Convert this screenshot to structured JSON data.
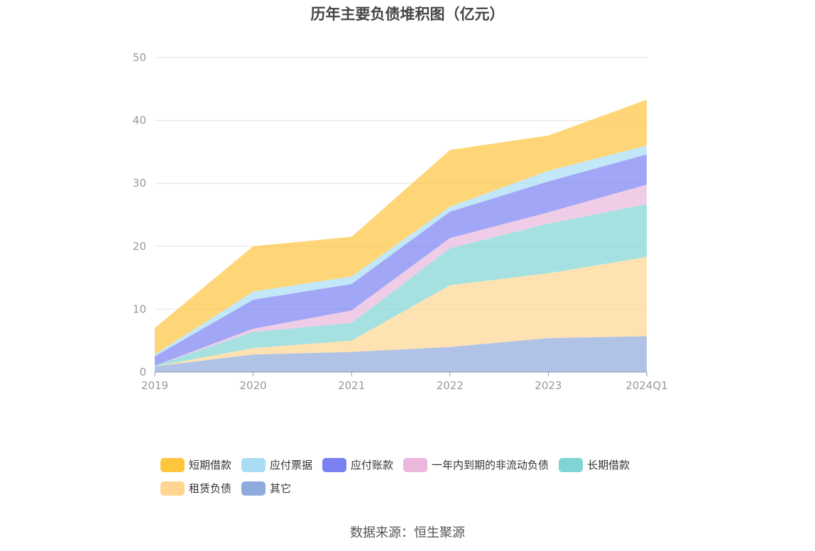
{
  "chart_data": {
    "type": "area",
    "stacked": true,
    "title": "历年主要负债堆积图（亿元）",
    "categories": [
      "2019",
      "2020",
      "2021",
      "2022",
      "2023",
      "2024Q1"
    ],
    "ylim": [
      0,
      50
    ],
    "yticks": [
      "0",
      "10",
      "20",
      "30",
      "40",
      "50"
    ],
    "grid": true,
    "legend_position": "bottom",
    "series": [
      {
        "name": "其它",
        "color": "#8faadc",
        "values": [
          0.9,
          2.8,
          3.2,
          4.0,
          5.4,
          5.7
        ]
      },
      {
        "name": "租赁负债",
        "color": "#ffd591",
        "values": [
          0.0,
          1.0,
          1.8,
          9.8,
          10.3,
          12.6
        ]
      },
      {
        "name": "长期借款",
        "color": "#80d4d6",
        "values": [
          0.1,
          2.6,
          2.8,
          5.9,
          7.9,
          8.4
        ]
      },
      {
        "name": "一年内到期的非流动负债",
        "color": "#e9b8dc",
        "values": [
          0.0,
          0.5,
          2.0,
          1.6,
          1.8,
          3.1
        ]
      },
      {
        "name": "应付账款",
        "color": "#7b80f2",
        "values": [
          1.5,
          4.6,
          4.2,
          4.2,
          4.9,
          4.8
        ]
      },
      {
        "name": "应付票据",
        "color": "#a8ddf5",
        "values": [
          0.3,
          1.3,
          1.2,
          0.8,
          1.7,
          1.4
        ]
      },
      {
        "name": "短期借款",
        "color": "#ffc53d",
        "values": [
          4.2,
          7.2,
          6.3,
          9.0,
          5.6,
          7.3
        ]
      }
    ]
  },
  "legend": {
    "rows": [
      [
        {
          "label": "短期借款",
          "color": "#ffc53d"
        },
        {
          "label": "应付票据",
          "color": "#a8ddf5"
        },
        {
          "label": "应付账款",
          "color": "#7b80f2"
        },
        {
          "label": "一年内到期的非流动负债",
          "color": "#e9b8dc"
        },
        {
          "label": "长期借款",
          "color": "#80d4d6"
        }
      ],
      [
        {
          "label": "租赁负债",
          "color": "#ffd591"
        },
        {
          "label": "其它",
          "color": "#8faadc"
        }
      ]
    ]
  },
  "source": "数据来源：恒生聚源"
}
